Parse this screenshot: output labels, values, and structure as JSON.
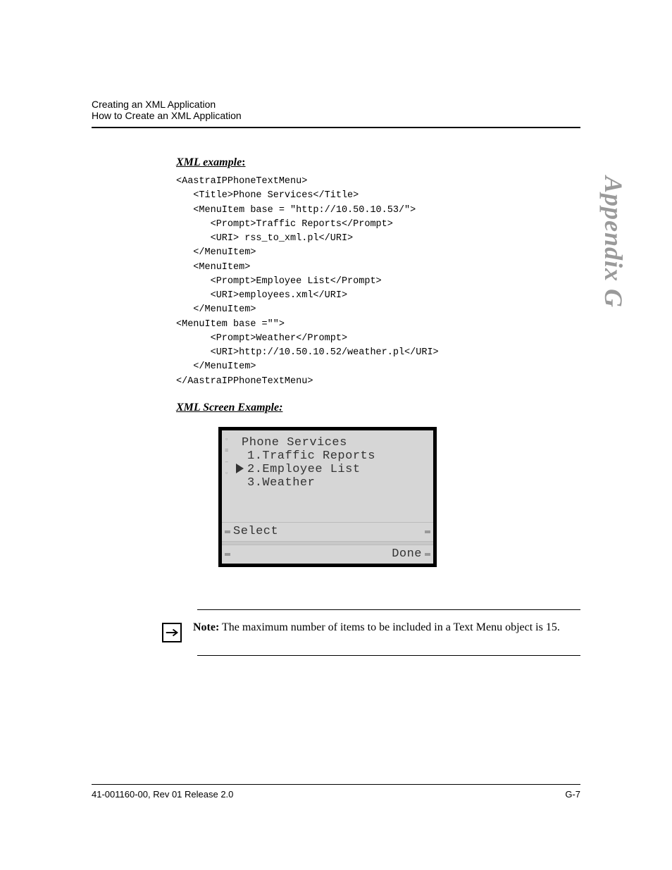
{
  "header": {
    "line1": "Creating an XML Application",
    "line2": "How to Create an XML Application"
  },
  "sections": {
    "xml_example_heading": "XML example",
    "xml_screen_heading": "XML Screen Example:"
  },
  "code": {
    "lines": [
      "<AastraIPPhoneTextMenu>",
      "   <Title>Phone Services</Title>",
      "   <MenuItem base = \"http://10.50.10.53/\">",
      "      <Prompt>Traffic Reports</Prompt>",
      "      <URI> rss_to_xml.pl</URI>",
      "   </MenuItem>",
      "   <MenuItem>",
      "      <Prompt>Employee List</Prompt>",
      "      <URI>employees.xml</URI>",
      "   </MenuItem>",
      "<MenuItem base =\"\">",
      "      <Prompt>Weather</Prompt>",
      "      <URI>http://10.50.10.52/weather.pl</URI>",
      "   </MenuItem>",
      "</AastraIPPhoneTextMenu>"
    ]
  },
  "phone_screen": {
    "title": "Phone Services",
    "items": [
      {
        "n": "1",
        "label": "Traffic Reports",
        "selected": false
      },
      {
        "n": "2",
        "label": "Employee List",
        "selected": true
      },
      {
        "n": "3",
        "label": "Weather",
        "selected": false
      }
    ],
    "softkeys": {
      "left": "Select",
      "right": "Done"
    },
    "colors": {
      "frame": "#000000",
      "background": "#d6d6d6",
      "text": "#333333",
      "bar": "#999999"
    }
  },
  "note": {
    "label": "Note:",
    "text": " The maximum number of items to be included in a Text Menu object is 15."
  },
  "side_tab": "Appendix G",
  "footer": {
    "left": "41-001160-00, Rev 01  Release 2.0",
    "right": "G-7"
  }
}
